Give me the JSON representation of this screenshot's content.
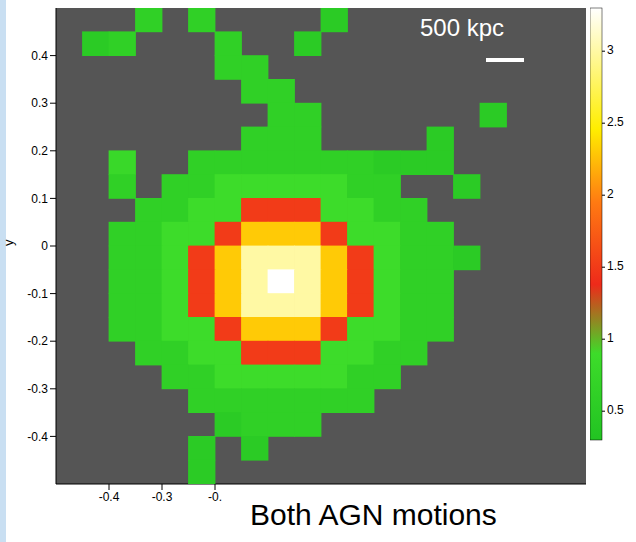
{
  "chart_data": {
    "type": "heatmap",
    "annotations": [
      "500 kpc",
      "Both AGN motions"
    ],
    "y_label": "y",
    "xlim": [
      -0.5,
      0.5
    ],
    "ylim": [
      -0.5,
      0.5
    ],
    "xticks": [
      -0.4,
      -0.3,
      {
        "value": -0.2,
        "label": "-0."
      }
    ],
    "yticks": [
      -0.4,
      -0.3,
      -0.2,
      -0.1,
      0,
      0.1,
      0.2,
      0.3,
      0.4
    ],
    "x": [
      -0.475,
      -0.425,
      -0.375,
      -0.325,
      -0.275,
      -0.225,
      -0.175,
      -0.125,
      -0.075,
      -0.025,
      0.025,
      0.075,
      0.125,
      0.175,
      0.225,
      0.275,
      0.325,
      0.375,
      0.425,
      0.475
    ],
    "y": [
      0.475,
      0.425,
      0.375,
      0.325,
      0.275,
      0.225,
      0.175,
      0.125,
      0.075,
      0.025,
      -0.025,
      -0.075,
      -0.125,
      -0.175,
      -0.225,
      -0.275,
      -0.325,
      -0.375,
      -0.425,
      -0.475
    ],
    "cells": [
      [
        null,
        null,
        null,
        0.6,
        null,
        0.6,
        null,
        null,
        null,
        null,
        0.5,
        null,
        null,
        null,
        null,
        null,
        null,
        null,
        null,
        null
      ],
      [
        null,
        0.5,
        0.6,
        null,
        null,
        null,
        0.6,
        null,
        null,
        0.5,
        null,
        null,
        null,
        null,
        null,
        null,
        null,
        null,
        null,
        null
      ],
      [
        null,
        null,
        null,
        null,
        null,
        null,
        0.6,
        0.6,
        null,
        null,
        null,
        null,
        null,
        null,
        null,
        null,
        null,
        null,
        null,
        null
      ],
      [
        null,
        null,
        null,
        null,
        null,
        null,
        null,
        0.6,
        0.6,
        null,
        null,
        null,
        null,
        null,
        null,
        null,
        null,
        null,
        null,
        null
      ],
      [
        null,
        null,
        null,
        null,
        null,
        null,
        null,
        null,
        0.6,
        0.6,
        null,
        null,
        null,
        null,
        null,
        null,
        0.5,
        null,
        null,
        null
      ],
      [
        null,
        null,
        null,
        null,
        null,
        null,
        null,
        0.6,
        0.6,
        0.6,
        null,
        null,
        null,
        null,
        0.5,
        null,
        null,
        null,
        null,
        null
      ],
      [
        null,
        null,
        0.8,
        null,
        null,
        0.6,
        0.6,
        0.6,
        0.6,
        0.6,
        0.6,
        0.6,
        0.5,
        0.5,
        0.5,
        null,
        null,
        null,
        null,
        null
      ],
      [
        null,
        null,
        0.6,
        null,
        0.6,
        0.6,
        0.9,
        0.9,
        0.9,
        0.9,
        0.9,
        0.6,
        0.6,
        null,
        null,
        0.5,
        null,
        null,
        null,
        null
      ],
      [
        null,
        null,
        null,
        0.6,
        0.6,
        0.9,
        0.9,
        1.5,
        1.5,
        1.5,
        0.9,
        0.9,
        0.6,
        0.6,
        null,
        null,
        null,
        null,
        null,
        null
      ],
      [
        null,
        null,
        0.6,
        0.6,
        0.9,
        0.9,
        1.5,
        2.3,
        2.3,
        2.3,
        1.5,
        0.9,
        0.9,
        0.6,
        0.6,
        null,
        null,
        null,
        null,
        null
      ],
      [
        null,
        null,
        0.6,
        0.6,
        0.9,
        1.5,
        2.3,
        3.0,
        3.0,
        3.0,
        2.3,
        1.5,
        0.9,
        0.6,
        0.6,
        0.5,
        null,
        null,
        null,
        null
      ],
      [
        null,
        null,
        0.6,
        0.6,
        0.9,
        1.5,
        2.3,
        3.0,
        3.3,
        3.0,
        2.3,
        1.5,
        0.9,
        0.6,
        0.6,
        null,
        null,
        null,
        null,
        null
      ],
      [
        null,
        null,
        0.6,
        0.6,
        0.9,
        1.5,
        2.3,
        3.0,
        3.0,
        3.0,
        2.3,
        1.5,
        0.9,
        0.6,
        0.6,
        null,
        null,
        null,
        null,
        null
      ],
      [
        null,
        null,
        0.6,
        0.6,
        0.9,
        0.9,
        1.5,
        2.3,
        2.3,
        2.3,
        1.5,
        0.9,
        0.9,
        0.6,
        0.6,
        null,
        null,
        null,
        null,
        null
      ],
      [
        null,
        null,
        null,
        0.6,
        0.6,
        0.9,
        0.9,
        1.5,
        1.5,
        1.5,
        0.9,
        0.9,
        0.6,
        0.6,
        null,
        null,
        null,
        null,
        null,
        null
      ],
      [
        null,
        null,
        null,
        null,
        0.6,
        0.6,
        0.9,
        0.9,
        0.9,
        0.9,
        0.9,
        0.6,
        0.6,
        null,
        null,
        null,
        null,
        null,
        null,
        null
      ],
      [
        null,
        null,
        null,
        null,
        null,
        0.6,
        0.6,
        0.6,
        0.6,
        0.6,
        0.6,
        0.6,
        null,
        null,
        null,
        null,
        null,
        null,
        null,
        null
      ],
      [
        null,
        null,
        null,
        null,
        null,
        null,
        0.5,
        0.6,
        0.6,
        0.6,
        null,
        null,
        null,
        null,
        null,
        null,
        null,
        null,
        null,
        null
      ],
      [
        null,
        null,
        null,
        null,
        null,
        0.5,
        null,
        0.5,
        null,
        null,
        null,
        null,
        null,
        null,
        null,
        null,
        null,
        null,
        null,
        null
      ],
      [
        null,
        null,
        null,
        null,
        null,
        0.5,
        null,
        null,
        null,
        null,
        null,
        null,
        null,
        null,
        null,
        null,
        null,
        null,
        null,
        null
      ]
    ],
    "colorbar": {
      "range": [
        0.3,
        3.3
      ],
      "ticks": [
        0.5,
        1,
        1.5,
        2,
        2.5,
        3
      ]
    }
  }
}
